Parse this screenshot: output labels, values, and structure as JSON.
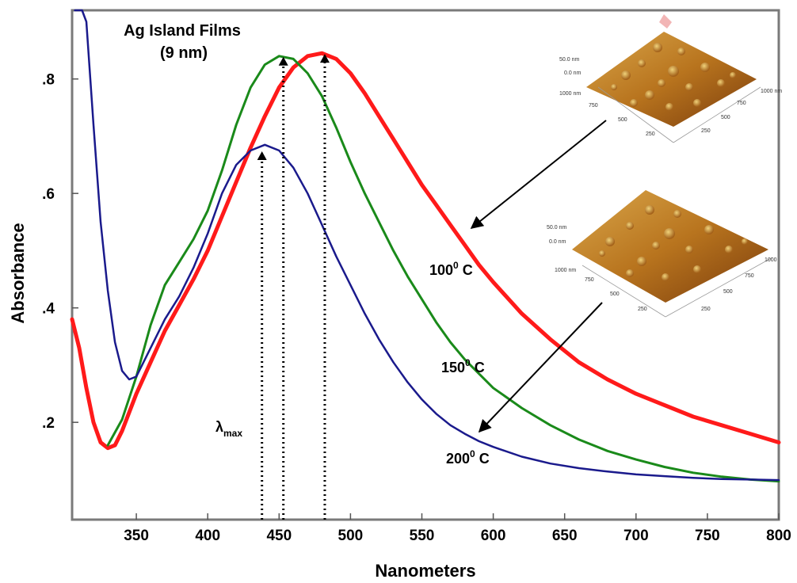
{
  "chart_data": {
    "type": "line",
    "title": "Ag Island Films",
    "subtitle": "(9 nm)",
    "xlabel": "Nanometers",
    "ylabel": "Absorbance",
    "xlim": [
      305,
      800
    ],
    "ylim": [
      0.03,
      0.92
    ],
    "x_ticks": [
      350,
      400,
      450,
      500,
      550,
      600,
      650,
      700,
      750,
      800
    ],
    "x_tick_labels": [
      "350",
      "400",
      "450",
      "500",
      "550",
      "600",
      "650",
      "700",
      "750",
      "800"
    ],
    "y_ticks": [
      0.2,
      0.4,
      0.6,
      0.8
    ],
    "y_tick_labels": [
      ".2",
      ".4",
      ".6",
      ".8"
    ],
    "grid": false,
    "series": [
      {
        "name": "100⁰ C",
        "color": "#ff1a1a",
        "x": [
          305,
          310,
          315,
          320,
          325,
          330,
          335,
          340,
          350,
          360,
          370,
          380,
          390,
          400,
          410,
          420,
          430,
          440,
          450,
          460,
          470,
          480,
          490,
          500,
          510,
          520,
          530,
          540,
          550,
          560,
          570,
          580,
          590,
          600,
          620,
          640,
          660,
          680,
          700,
          720,
          740,
          760,
          780,
          800
        ],
        "y": [
          0.38,
          0.33,
          0.26,
          0.2,
          0.165,
          0.155,
          0.16,
          0.185,
          0.25,
          0.305,
          0.36,
          0.405,
          0.45,
          0.5,
          0.56,
          0.62,
          0.68,
          0.735,
          0.785,
          0.82,
          0.84,
          0.845,
          0.835,
          0.81,
          0.775,
          0.735,
          0.695,
          0.655,
          0.615,
          0.58,
          0.545,
          0.51,
          0.475,
          0.445,
          0.39,
          0.345,
          0.305,
          0.275,
          0.25,
          0.23,
          0.21,
          0.195,
          0.18,
          0.165
        ]
      },
      {
        "name": "150⁰ C",
        "color": "#1a8a1a",
        "x": [
          330,
          340,
          350,
          360,
          370,
          380,
          390,
          400,
          410,
          420,
          430,
          440,
          450,
          460,
          470,
          480,
          490,
          500,
          510,
          520,
          530,
          540,
          550,
          560,
          570,
          580,
          590,
          600,
          620,
          640,
          660,
          680,
          700,
          720,
          740,
          760,
          780,
          800
        ],
        "y": [
          0.16,
          0.205,
          0.28,
          0.37,
          0.44,
          0.48,
          0.52,
          0.57,
          0.64,
          0.72,
          0.785,
          0.825,
          0.84,
          0.835,
          0.81,
          0.77,
          0.715,
          0.655,
          0.6,
          0.55,
          0.5,
          0.455,
          0.415,
          0.375,
          0.34,
          0.31,
          0.285,
          0.26,
          0.225,
          0.195,
          0.17,
          0.15,
          0.135,
          0.122,
          0.112,
          0.105,
          0.1,
          0.097
        ]
      },
      {
        "name": "200⁰ C",
        "color": "#1a1a8c",
        "x": [
          307,
          312,
          315,
          320,
          325,
          330,
          335,
          340,
          345,
          350,
          360,
          370,
          380,
          390,
          400,
          410,
          420,
          430,
          440,
          450,
          460,
          470,
          480,
          490,
          500,
          510,
          520,
          530,
          540,
          550,
          560,
          570,
          580,
          590,
          600,
          620,
          640,
          660,
          680,
          700,
          720,
          740,
          760,
          780,
          800
        ],
        "y": [
          0.92,
          0.92,
          0.9,
          0.72,
          0.55,
          0.43,
          0.34,
          0.29,
          0.275,
          0.28,
          0.33,
          0.38,
          0.42,
          0.47,
          0.53,
          0.6,
          0.65,
          0.675,
          0.685,
          0.675,
          0.645,
          0.6,
          0.545,
          0.49,
          0.44,
          0.39,
          0.345,
          0.305,
          0.27,
          0.24,
          0.215,
          0.195,
          0.18,
          0.167,
          0.157,
          0.14,
          0.128,
          0.12,
          0.114,
          0.109,
          0.106,
          0.103,
          0.101,
          0.1,
          0.099
        ]
      }
    ],
    "peak_markers": [
      {
        "x": 438,
        "y": 0.675
      },
      {
        "x": 453,
        "y": 0.84
      },
      {
        "x": 482,
        "y": 0.845
      }
    ],
    "annotations": {
      "lambda_main": "λ",
      "lambda_sub": "max",
      "label_100_main": "100",
      "label_100_sup": "0",
      "label_100_tail": " C",
      "label_150_main": "150",
      "label_150_sup": "0",
      "label_150_tail": " C",
      "label_200_main": "200",
      "label_200_sup": "0",
      "label_200_tail": " C"
    },
    "insets": [
      {
        "z_labels": [
          "50.0 nm",
          "0.0 nm"
        ],
        "x_labels": [
          "1000 nm",
          "750",
          "500",
          "250"
        ],
        "y_labels": [
          "1000 nm",
          "750",
          "500",
          "250"
        ]
      },
      {
        "z_labels": [
          "50.0 nm",
          "0.0 nm"
        ],
        "x_labels": [
          "1000 nm",
          "750",
          "500",
          "250"
        ],
        "y_labels": [
          "1000",
          "750",
          "500",
          "250"
        ]
      }
    ]
  }
}
